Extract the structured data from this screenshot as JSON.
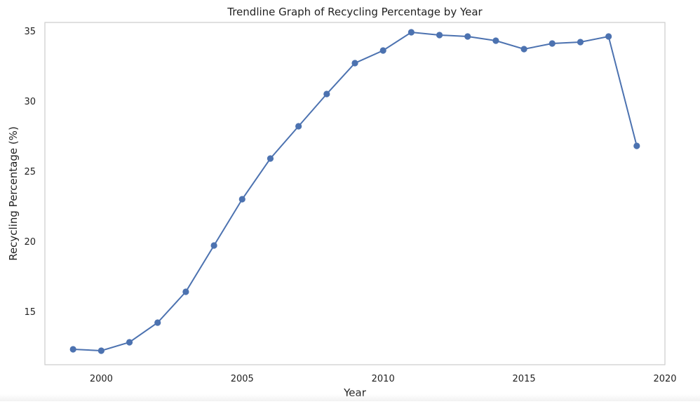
{
  "chart_data": {
    "type": "line",
    "title": "Trendline Graph of Recycling Percentage by Year",
    "xlabel": "Year",
    "ylabel": "Recycling Percentage (%)",
    "xlim": [
      1998.0,
      2020.0
    ],
    "ylim": [
      11.2,
      35.6
    ],
    "x_ticks": [
      2000,
      2005,
      2010,
      2015,
      2020
    ],
    "y_ticks": [
      15,
      20,
      25,
      30,
      35
    ],
    "grid": false,
    "legend": "none",
    "series": [
      {
        "color": "#4c72b0",
        "marker": "circle",
        "x": [
          1999,
          2000,
          2001,
          2002,
          2003,
          2004,
          2005,
          2006,
          2007,
          2008,
          2009,
          2010,
          2011,
          2012,
          2013,
          2014,
          2015,
          2016,
          2017,
          2018,
          2019
        ],
        "y": [
          12.3,
          12.2,
          12.8,
          14.2,
          16.4,
          19.7,
          23.0,
          25.9,
          28.2,
          30.5,
          32.7,
          33.6,
          34.9,
          34.7,
          34.6,
          34.3,
          33.7,
          34.1,
          34.2,
          34.6,
          26.8
        ]
      }
    ]
  }
}
